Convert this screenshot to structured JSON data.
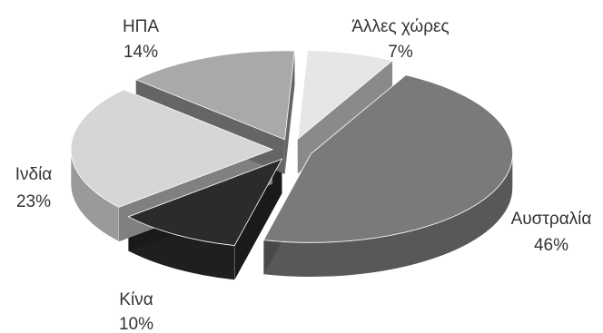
{
  "chart_data": {
    "type": "pie",
    "style": "3d-exploded",
    "legend": "none",
    "slices": [
      {
        "name": "Αυστραλία",
        "value": 46,
        "label": "46%",
        "color": "#7a7a7a"
      },
      {
        "name": "Κίνα",
        "value": 10,
        "label": "10%",
        "color": "#2b2b2b"
      },
      {
        "name": "Ινδία",
        "value": 23,
        "label": "23%",
        "color": "#d6d6d6"
      },
      {
        "name": "ΗΠΑ",
        "value": 14,
        "label": "14%",
        "color": "#a9a9a9"
      },
      {
        "name": "Άλλες χώρες",
        "value": 7,
        "label": "7%",
        "color": "#e6e6e6"
      }
    ]
  }
}
